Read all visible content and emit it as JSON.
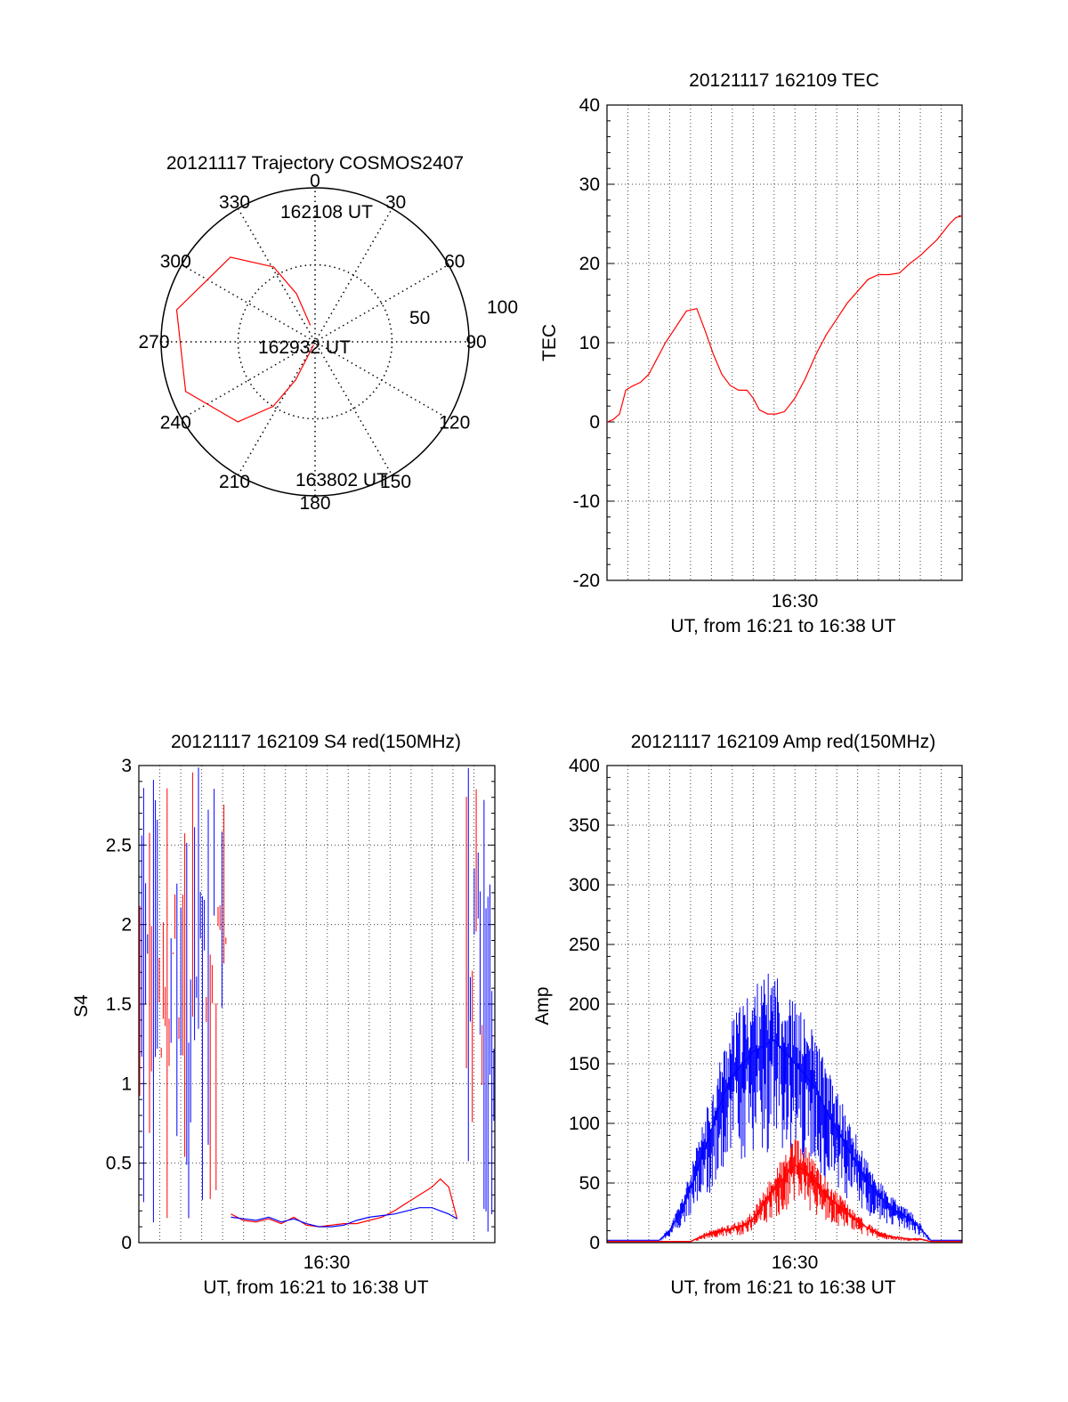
{
  "colors": {
    "red": "#ff0000",
    "blue": "#0000ff",
    "axis": "#000000",
    "grid": "#555555"
  },
  "chart_data": [
    {
      "type": "polar",
      "title": "20121117 Trajectory COSMOS2407",
      "angle_labels": [
        "0",
        "30",
        "60",
        "90",
        "120",
        "150",
        "180",
        "210",
        "240",
        "270",
        "300",
        "330"
      ],
      "radius_labels": [
        "50",
        "100"
      ],
      "track": [
        {
          "az": 344,
          "el": 80
        },
        {
          "az": 339,
          "el": 60
        },
        {
          "az": 331,
          "el": 40
        },
        {
          "az": 315,
          "el": 20
        },
        {
          "az": 283,
          "el": 7
        },
        {
          "az": 249,
          "el": 9
        },
        {
          "az": 224,
          "el": 25
        },
        {
          "az": 213,
          "el": 45
        },
        {
          "az": 207,
          "el": 65
        },
        {
          "az": 204,
          "el": 88
        }
      ],
      "annotations": [
        "162108 UT",
        "162932 UT",
        "163802 UT"
      ]
    },
    {
      "type": "line",
      "title": "20121117 162109 TEC",
      "ylabel": "TEC",
      "xlabel": "UT, from 16:21 to 16:38 UT",
      "xtick": "16:30",
      "yticks": [
        "40",
        "30",
        "20",
        "10",
        "0",
        "-10",
        "-20"
      ],
      "ylim": [
        -20,
        40
      ],
      "series": [
        {
          "color": "red",
          "x": [
            0,
            0.3,
            0.6,
            0.9,
            1.2,
            1.6,
            2.0,
            2.4,
            2.8,
            3.3,
            3.8,
            4.3,
            4.7,
            5.1,
            5.5,
            5.9,
            6.3,
            6.7,
            7.0,
            7.3,
            7.7,
            8.1,
            8.5,
            9.0,
            9.5,
            10.0,
            10.5,
            11.0,
            11.5,
            12.0,
            12.5,
            13.0,
            13.5,
            14.0,
            14.5,
            15.0,
            15.4,
            15.8,
            16.1,
            16.4,
            16.7,
            17.0
          ],
          "values": [
            0,
            0.3,
            1,
            4,
            4.5,
            5,
            6,
            8,
            10,
            12,
            14,
            14.3,
            11.5,
            8.5,
            6,
            4.6,
            4,
            4,
            3,
            1.5,
            1,
            1,
            1.3,
            3,
            5.5,
            8.5,
            11,
            13,
            15,
            16.5,
            18,
            18.6,
            18.6,
            18.8,
            20,
            21,
            22,
            23,
            24,
            25,
            25.8,
            26
          ]
        }
      ]
    },
    {
      "type": "line",
      "title": "20121117 162109 S4 red(150MHz)",
      "ylabel": "S4",
      "xlabel": "UT, from 16:21 to 16:38 UT",
      "xtick": "16:30",
      "yticks": [
        "3",
        "2.5",
        "2",
        "1.5",
        "1",
        "0.5",
        "0"
      ],
      "ylim": [
        0,
        3
      ],
      "series": [
        {
          "color": "red",
          "x": [
            4.4,
            5.0,
            5.6,
            6.2,
            6.8,
            7.4,
            8.0,
            8.6,
            9.2,
            9.8,
            10.4,
            11.0,
            11.6,
            12.2,
            12.8,
            13.4,
            14.0,
            14.4,
            14.8,
            15.2
          ],
          "values": [
            0.18,
            0.14,
            0.13,
            0.15,
            0.12,
            0.16,
            0.11,
            0.1,
            0.11,
            0.12,
            0.12,
            0.14,
            0.16,
            0.2,
            0.25,
            0.3,
            0.35,
            0.4,
            0.35,
            0.15
          ]
        },
        {
          "color": "blue",
          "x": [
            4.4,
            5.0,
            5.6,
            6.2,
            6.8,
            7.4,
            8.0,
            8.6,
            9.2,
            9.8,
            10.4,
            11.0,
            11.6,
            12.2,
            12.8,
            13.4,
            14.0,
            14.4,
            14.8,
            15.2
          ],
          "values": [
            0.16,
            0.15,
            0.14,
            0.16,
            0.13,
            0.15,
            0.12,
            0.1,
            0.1,
            0.11,
            0.14,
            0.16,
            0.17,
            0.18,
            0.2,
            0.22,
            0.22,
            0.2,
            0.18,
            0.15
          ]
        }
      ],
      "noisy_regions": [
        {
          "x": [
            0,
            4.2
          ],
          "ymax": 3
        },
        {
          "x": [
            15.6,
            17
          ],
          "ymax": 3
        }
      ]
    },
    {
      "type": "line",
      "title": "20121117 162109 Amp red(150MHz)",
      "ylabel": "Amp",
      "xlabel": "UT, from 16:21 to 16:38 UT",
      "xtick": "16:30",
      "yticks": [
        "400",
        "350",
        "300",
        "250",
        "200",
        "150",
        "100",
        "50",
        "0"
      ],
      "ylim": [
        0,
        400
      ],
      "series": [
        {
          "color": "blue",
          "x": [
            0,
            2.5,
            3.0,
            3.5,
            4.0,
            4.5,
            5.0,
            5.5,
            6.0,
            6.5,
            7.0,
            7.5,
            8.0,
            8.5,
            9.0,
            9.5,
            10.0,
            10.5,
            11.0,
            11.5,
            12.0,
            12.5,
            13.0,
            13.5,
            14.0,
            14.5,
            15.0,
            15.5,
            17.0
          ],
          "values": [
            2,
            2,
            10,
            25,
            45,
            70,
            95,
            120,
            140,
            150,
            160,
            165,
            170,
            160,
            150,
            140,
            130,
            110,
            95,
            80,
            65,
            50,
            40,
            30,
            25,
            20,
            12,
            2,
            2
          ]
        },
        {
          "color": "red",
          "x": [
            0,
            4.0,
            4.5,
            5.0,
            5.5,
            6.0,
            6.5,
            7.0,
            7.5,
            8.0,
            8.5,
            9.0,
            9.5,
            10.0,
            10.5,
            11.0,
            11.5,
            12.0,
            12.5,
            13.0,
            13.5,
            14.0,
            14.5,
            15.0,
            15.5,
            17.0
          ],
          "values": [
            1,
            1,
            5,
            8,
            10,
            12,
            14,
            20,
            32,
            45,
            55,
            65,
            60,
            50,
            40,
            32,
            25,
            18,
            12,
            8,
            5,
            4,
            3,
            3,
            1,
            1
          ]
        }
      ]
    }
  ]
}
